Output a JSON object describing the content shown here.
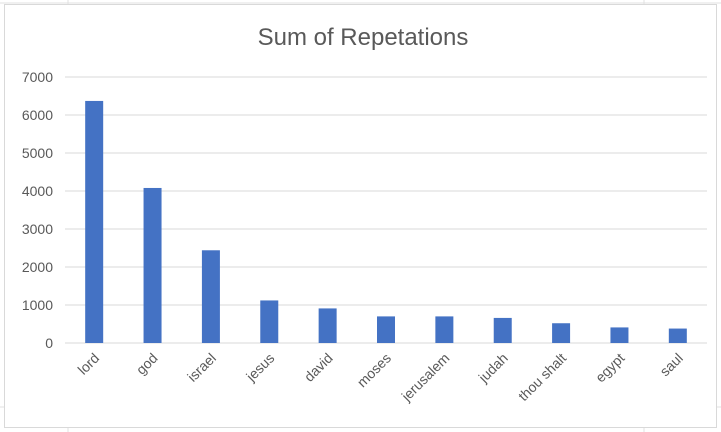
{
  "chart_data": {
    "type": "bar",
    "title": "Sum of Repetations",
    "xlabel": "",
    "ylabel": "",
    "categories": [
      "lord",
      "god",
      "israel",
      "jesus",
      "david",
      "moses",
      "jerusalem",
      "judah",
      "thou shalt",
      "egypt",
      "saul"
    ],
    "series": [
      {
        "values": [
          6370,
          4080,
          2440,
          1120,
          910,
          700,
          700,
          660,
          520,
          410,
          380
        ]
      }
    ],
    "ylim": [
      0,
      7000
    ],
    "yticks": [
      "0",
      "1000",
      "2000",
      "3000",
      "4000",
      "5000",
      "6000",
      "7000"
    ],
    "grid": true,
    "legend": "none",
    "colors": {
      "bar": "#4472C4",
      "grid": "#d9d9d9",
      "text": "#595959"
    }
  }
}
